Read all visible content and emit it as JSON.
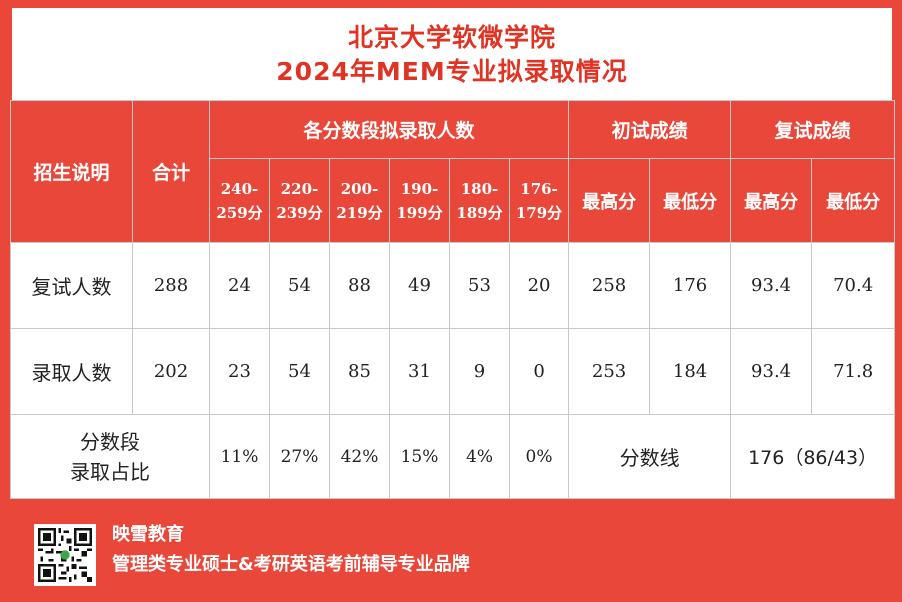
{
  "title": {
    "line1": "北京大学软微学院",
    "line2": "2024年MEM专业拟录取情况"
  },
  "table": {
    "header": {
      "col_admission": "招生说明",
      "col_total": "合计",
      "group_score_ranges": "各分数段拟录取人数",
      "group_initial": "初试成绩",
      "group_retest": "复试成绩",
      "ranges": [
        "240-\n259分",
        "220-\n239分",
        "200-\n219分",
        "190-\n199分",
        "180-\n189分",
        "176-\n179分"
      ],
      "initial_max": "最高分",
      "initial_min": "最低分",
      "retest_max": "最高分",
      "retest_min": "最低分"
    },
    "rows": [
      {
        "label": "复试人数",
        "total": "288",
        "ranges": [
          "24",
          "54",
          "88",
          "49",
          "53",
          "20"
        ],
        "initial_max": "258",
        "initial_min": "176",
        "retest_max": "93.4",
        "retest_min": "70.4"
      },
      {
        "label": "录取人数",
        "total": "202",
        "ranges": [
          "23",
          "54",
          "85",
          "31",
          "9",
          "0"
        ],
        "initial_max": "253",
        "initial_min": "184",
        "retest_max": "93.4",
        "retest_min": "71.8"
      }
    ],
    "ratio_row": {
      "label": "分数段\n录取占比",
      "percents": [
        "11%",
        "27%",
        "42%",
        "15%",
        "4%",
        "0%"
      ],
      "cutoff_label": "分数线",
      "cutoff_value": "176（86/43）"
    }
  },
  "footer": {
    "brand": "映雪教育",
    "slogan": "管理类专业硕士&考研英语考前辅导专业品牌",
    "qr_icon": "qr-code-icon"
  },
  "colors": {
    "background": "#e8473a",
    "title_text": "#e03324",
    "header_text": "#ffffff",
    "body_text": "#222222"
  }
}
